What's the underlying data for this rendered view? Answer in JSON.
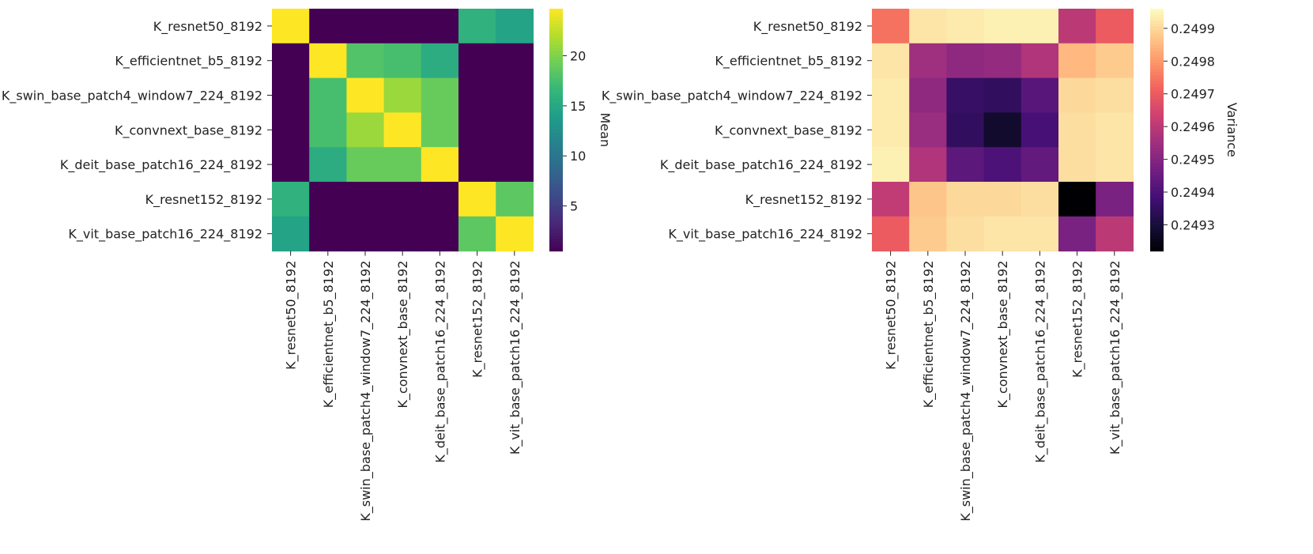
{
  "chart_data": [
    {
      "type": "heatmap",
      "title": "",
      "xlabel": "",
      "ylabel": "",
      "labels": [
        "K_resnet50_8192",
        "K_efficientnet_b5_8192",
        "K_swin_base_patch4_window7_224_8192",
        "K_convnext_base_8192",
        "K_deit_base_patch16_224_8192",
        "K_resnet152_8192",
        "K_vit_base_patch16_224_8192"
      ],
      "values": [
        [
          24.7,
          0.5,
          0.5,
          0.5,
          0.5,
          16.0,
          14.5
        ],
        [
          0.5,
          24.7,
          18.0,
          17.5,
          15.5,
          0.5,
          0.5
        ],
        [
          0.5,
          17.5,
          24.7,
          21.0,
          19.0,
          0.5,
          0.5
        ],
        [
          0.5,
          17.5,
          21.0,
          24.7,
          19.0,
          0.5,
          0.5
        ],
        [
          0.5,
          15.5,
          19.0,
          19.0,
          24.7,
          0.5,
          0.5
        ],
        [
          16.0,
          0.5,
          0.5,
          0.5,
          0.5,
          24.7,
          18.5
        ],
        [
          14.5,
          0.5,
          0.5,
          0.5,
          0.5,
          18.5,
          24.7
        ]
      ],
      "colormap": "viridis",
      "colorbar": {
        "label": "Mean",
        "range": [
          0.5,
          24.7
        ],
        "ticks": [
          5,
          10,
          15,
          20
        ],
        "tick_labels": [
          "5",
          "10",
          "15",
          "20"
        ]
      }
    },
    {
      "type": "heatmap",
      "title": "",
      "xlabel": "",
      "ylabel": "",
      "labels": [
        "K_resnet50_8192",
        "K_efficientnet_b5_8192",
        "K_swin_base_patch4_window7_224_8192",
        "K_convnext_base_8192",
        "K_deit_base_patch16_224_8192",
        "K_resnet152_8192",
        "K_vit_base_patch16_224_8192"
      ],
      "values": [
        [
          0.24974,
          0.24992,
          0.24993,
          0.24994,
          0.24994,
          0.2496,
          0.2497
        ],
        [
          0.24992,
          0.24955,
          0.24952,
          0.24953,
          0.24958,
          0.24985,
          0.24988
        ],
        [
          0.24993,
          0.24952,
          0.24936,
          0.24935,
          0.24942,
          0.2499,
          0.24991
        ],
        [
          0.24993,
          0.24954,
          0.24935,
          0.24928,
          0.24939,
          0.24991,
          0.24992
        ],
        [
          0.24994,
          0.24958,
          0.24943,
          0.2494,
          0.24944,
          0.24991,
          0.24992
        ],
        [
          0.24961,
          0.24987,
          0.2499,
          0.2499,
          0.24991,
          0.24922,
          0.24948
        ],
        [
          0.2497,
          0.24988,
          0.24991,
          0.24992,
          0.24992,
          0.24948,
          0.2496
        ]
      ],
      "colormap": "magma",
      "colorbar": {
        "label": "Variance",
        "range": [
          0.24922,
          0.24996
        ],
        "ticks": [
          0.2493,
          0.2494,
          0.2495,
          0.2496,
          0.2497,
          0.2498,
          0.2499
        ],
        "tick_labels": [
          "0.2493",
          "0.2494",
          "0.2495",
          "0.2496",
          "0.2497",
          "0.2498",
          "0.2499"
        ]
      }
    }
  ]
}
